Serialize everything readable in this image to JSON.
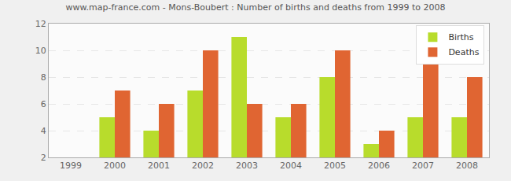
{
  "chart_data": {
    "type": "bar",
    "title": "www.map-france.com - Mons-Boubert : Number of births and deaths from 1999 to 2008",
    "categories": [
      "1999",
      "2000",
      "2001",
      "2002",
      "2003",
      "2004",
      "2005",
      "2006",
      "2007",
      "2008"
    ],
    "series": [
      {
        "name": "Births",
        "color": "#b8dc2c",
        "values": [
          2,
          5,
          4,
          7,
          11,
          5,
          8,
          3,
          5,
          5
        ]
      },
      {
        "name": "Deaths",
        "color": "#e06532",
        "values": [
          2,
          7,
          6,
          10,
          6,
          6,
          10,
          4,
          9,
          8
        ]
      }
    ],
    "ylim": [
      2,
      12
    ],
    "yticks": [
      2,
      4,
      6,
      8,
      10,
      12
    ],
    "grid": true,
    "legend": "top-right"
  }
}
